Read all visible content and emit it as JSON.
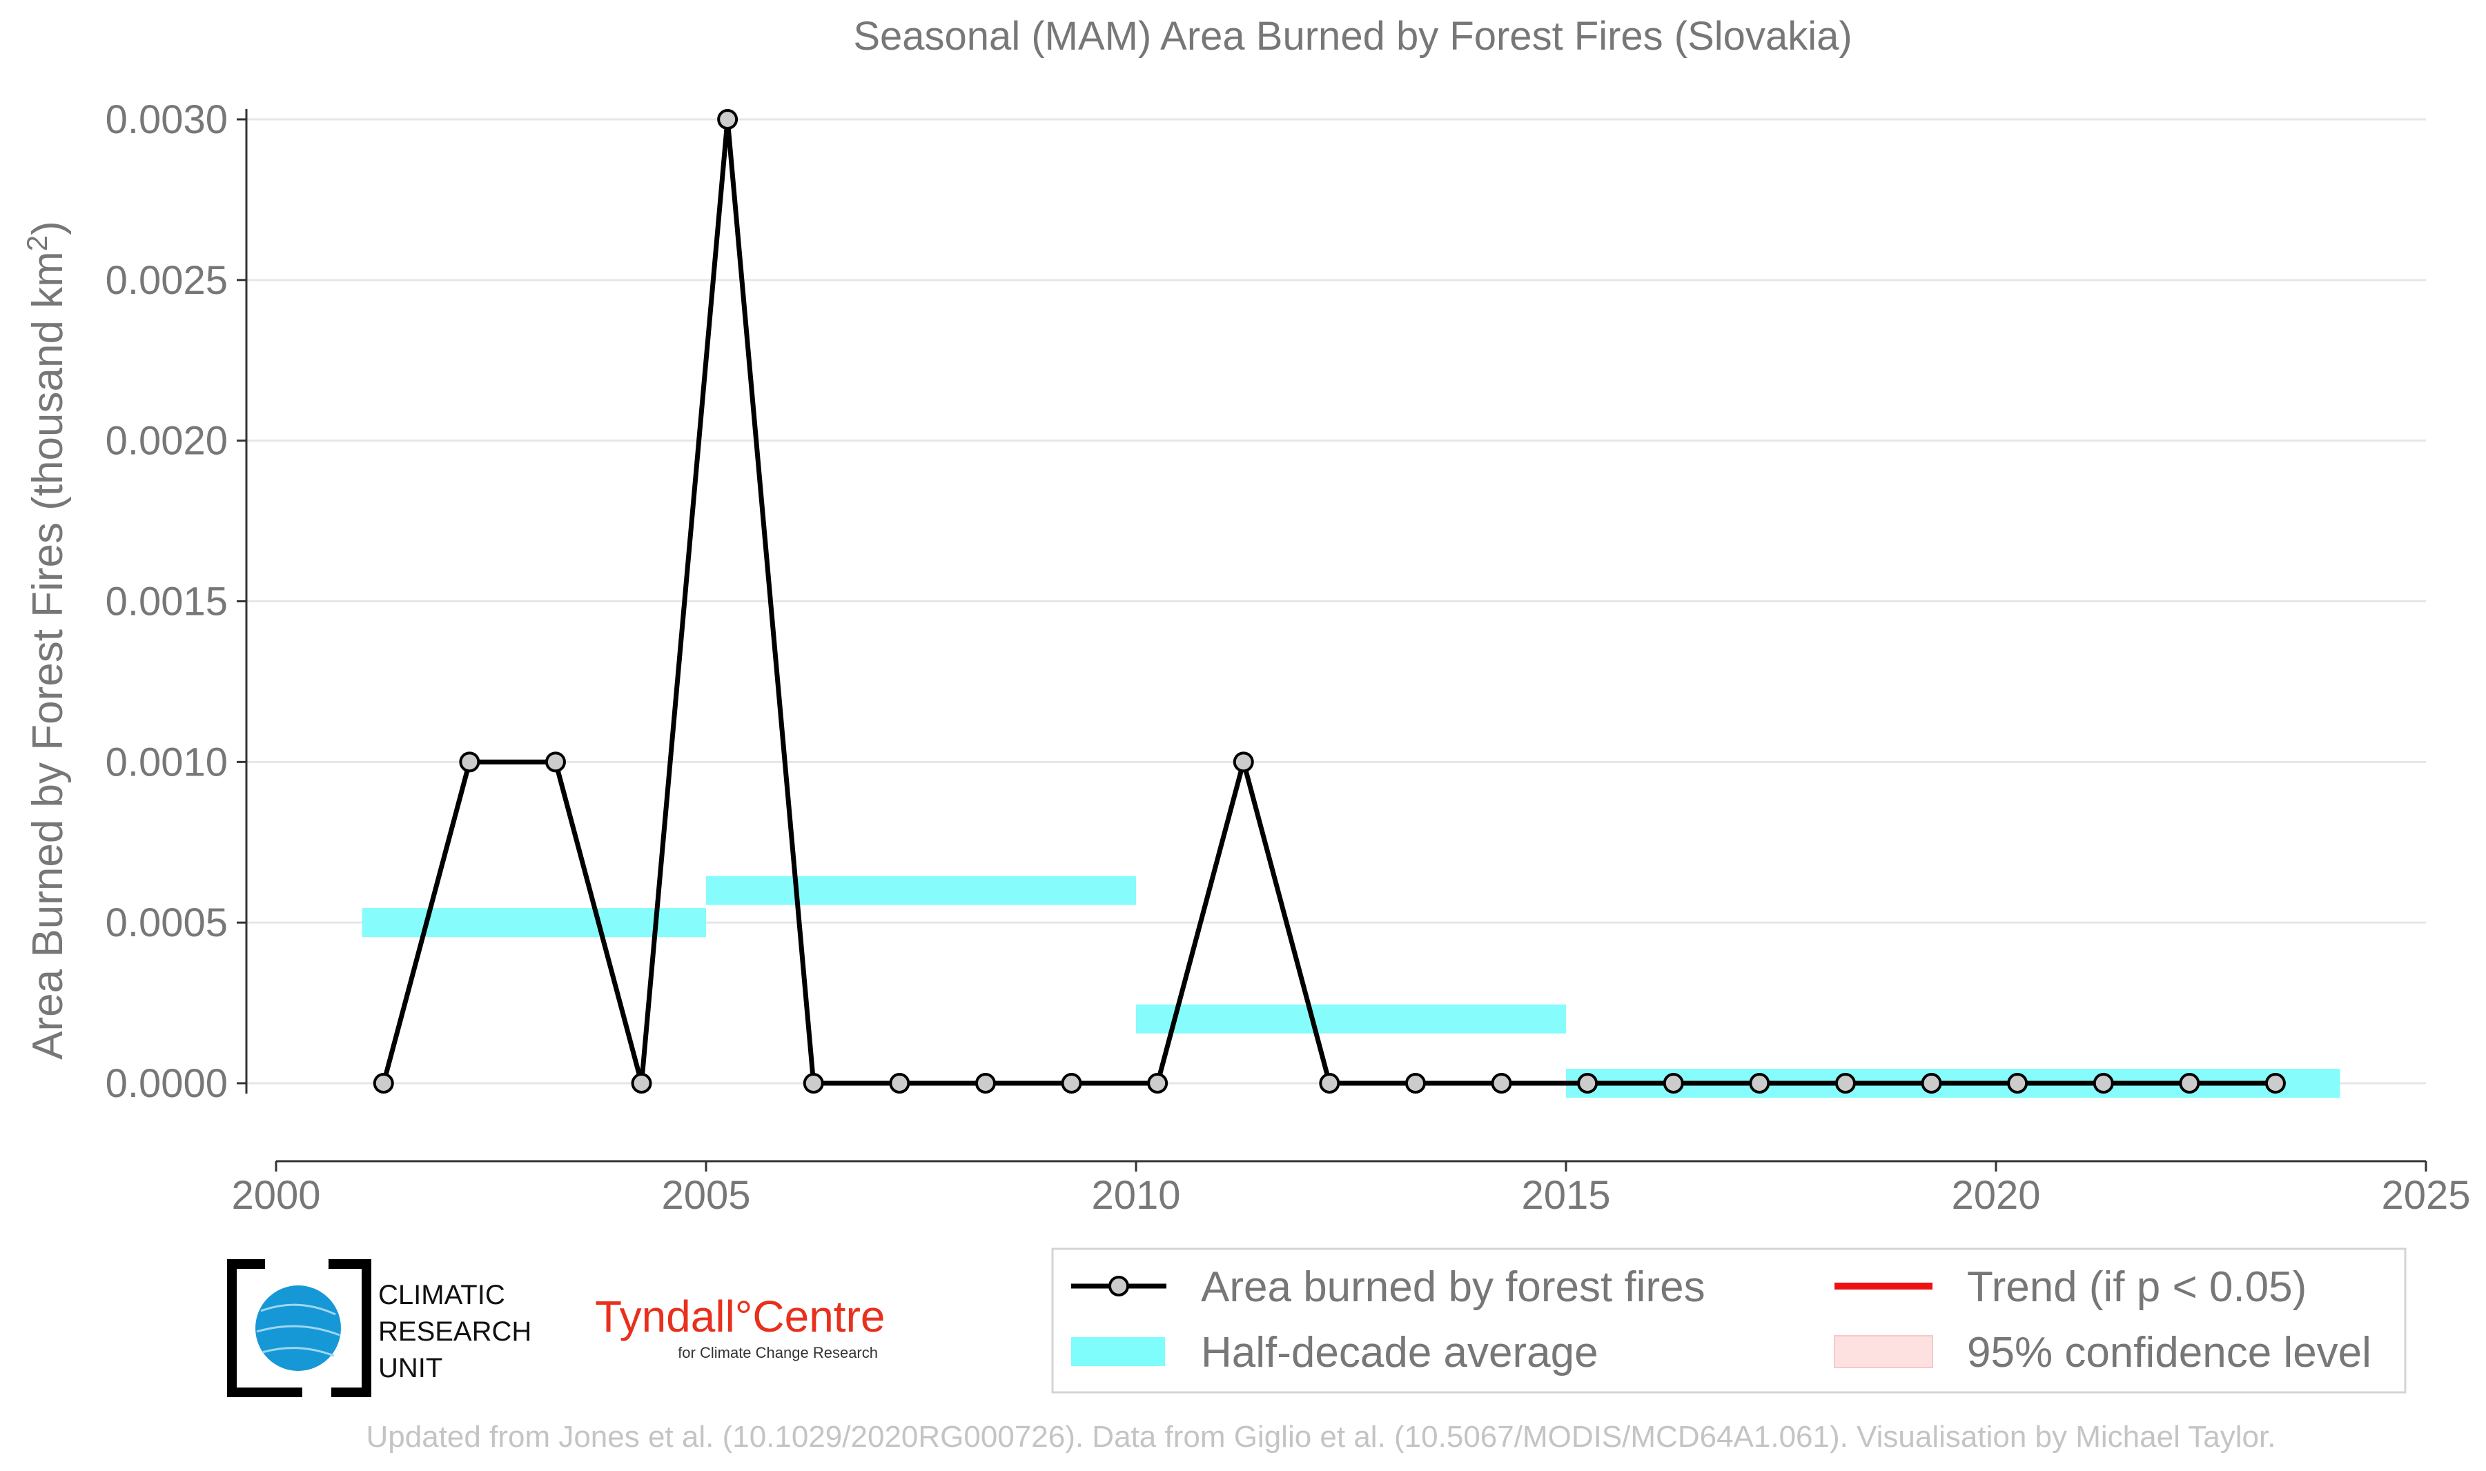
{
  "chart_data": {
    "type": "line",
    "title": "Seasonal (MAM) Area Burned by Forest Fires (Slovakia)",
    "xlabel": "",
    "ylabel": "Area Burned by Forest Fires (thousand km",
    "ylabel_superscript": "2",
    "ylabel_suffix": ")",
    "xlim": [
      2000,
      2025
    ],
    "ylim": [
      0,
      0.003
    ],
    "x_ticks": [
      "2000",
      "2005",
      "2010",
      "2015",
      "2020",
      "2025"
    ],
    "y_ticks": [
      "0.0000",
      "0.0005",
      "0.0010",
      "0.0015",
      "0.0020",
      "0.0025",
      "0.0030"
    ],
    "grid": "horizontal",
    "series": [
      {
        "name": "Area burned by forest fires",
        "color": "#000000",
        "marker_fill": "#cccccc",
        "x": [
          2001,
          2002,
          2003,
          2004,
          2005,
          2006,
          2007,
          2008,
          2009,
          2010,
          2011,
          2012,
          2013,
          2014,
          2015,
          2016,
          2017,
          2018,
          2019,
          2020,
          2021,
          2022,
          2023
        ],
        "y": [
          0.0,
          0.001,
          0.001,
          0.0,
          0.003,
          0.0,
          0.0,
          0.0,
          0.0,
          0.0,
          0.001,
          0.0,
          0.0,
          0.0,
          0.0,
          0.0,
          0.0,
          0.0,
          0.0,
          0.0,
          0.0,
          0.0,
          0.0
        ]
      }
    ],
    "half_decade_average": {
      "name": "Half-decade average",
      "color": "#7ffcfc",
      "segments": [
        {
          "x_start": 2001,
          "x_end": 2005,
          "y": 0.0005
        },
        {
          "x_start": 2005,
          "x_end": 2010,
          "y": 0.0006
        },
        {
          "x_start": 2010,
          "x_end": 2015,
          "y": 0.0002
        },
        {
          "x_start": 2015,
          "x_end": 2024,
          "y": 0.0
        }
      ]
    },
    "legend": {
      "placement": "bottom-right",
      "entries": [
        {
          "label": "Area burned by forest fires",
          "kind": "line-marker",
          "color": "#000000"
        },
        {
          "label": "Half-decade average",
          "kind": "band",
          "color": "#7ffcfc"
        },
        {
          "label": "Trend (if p < 0.05)",
          "kind": "line",
          "color": "#ee1111"
        },
        {
          "label": "95% confidence level",
          "kind": "fill",
          "color": "#fde0e0"
        }
      ]
    }
  },
  "logos": {
    "cru": [
      "CLIMATIC",
      "RESEARCH",
      "UNIT"
    ],
    "tyndall_main": "Tyndall°Centre",
    "tyndall_sub": "for Climate Change Research"
  },
  "footer": "Updated from Jones et al. (10.1029/2020RG000726). Data from Giglio et al. (10.5067/MODIS/MCD64A1.061). Visualisation by Michael Taylor."
}
